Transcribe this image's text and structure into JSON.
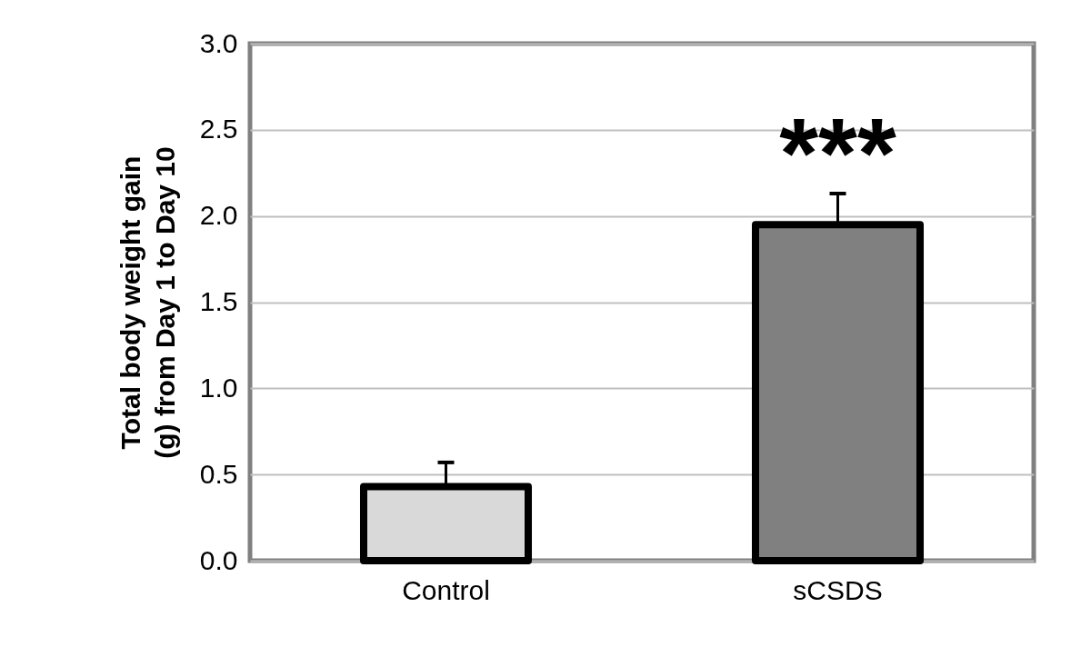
{
  "chart_data": {
    "type": "bar",
    "ylabel": "Total body weight gain\n(g) from Day 1 to Day 10",
    "categories": [
      "Control",
      "sCSDS"
    ],
    "values": [
      0.43,
      1.95
    ],
    "colors": [
      "#d9d9d9",
      "#808080"
    ],
    "errors": [
      [
        0.43,
        0.57
      ],
      [
        1.95,
        2.13
      ]
    ],
    "ylim": [
      0,
      3
    ],
    "yticks": [
      {
        "value": 0,
        "label": "0.0"
      },
      {
        "value": 0.5,
        "label": "0.5"
      },
      {
        "value": 1,
        "label": "1.0"
      },
      {
        "value": 1.5,
        "label": "1.5"
      },
      {
        "value": 2,
        "label": "2.0"
      },
      {
        "value": 2.5,
        "label": "2.5"
      },
      {
        "value": 3,
        "label": "3.0"
      }
    ],
    "grid": "y",
    "legend": false,
    "annotations": [
      "***"
    ]
  }
}
